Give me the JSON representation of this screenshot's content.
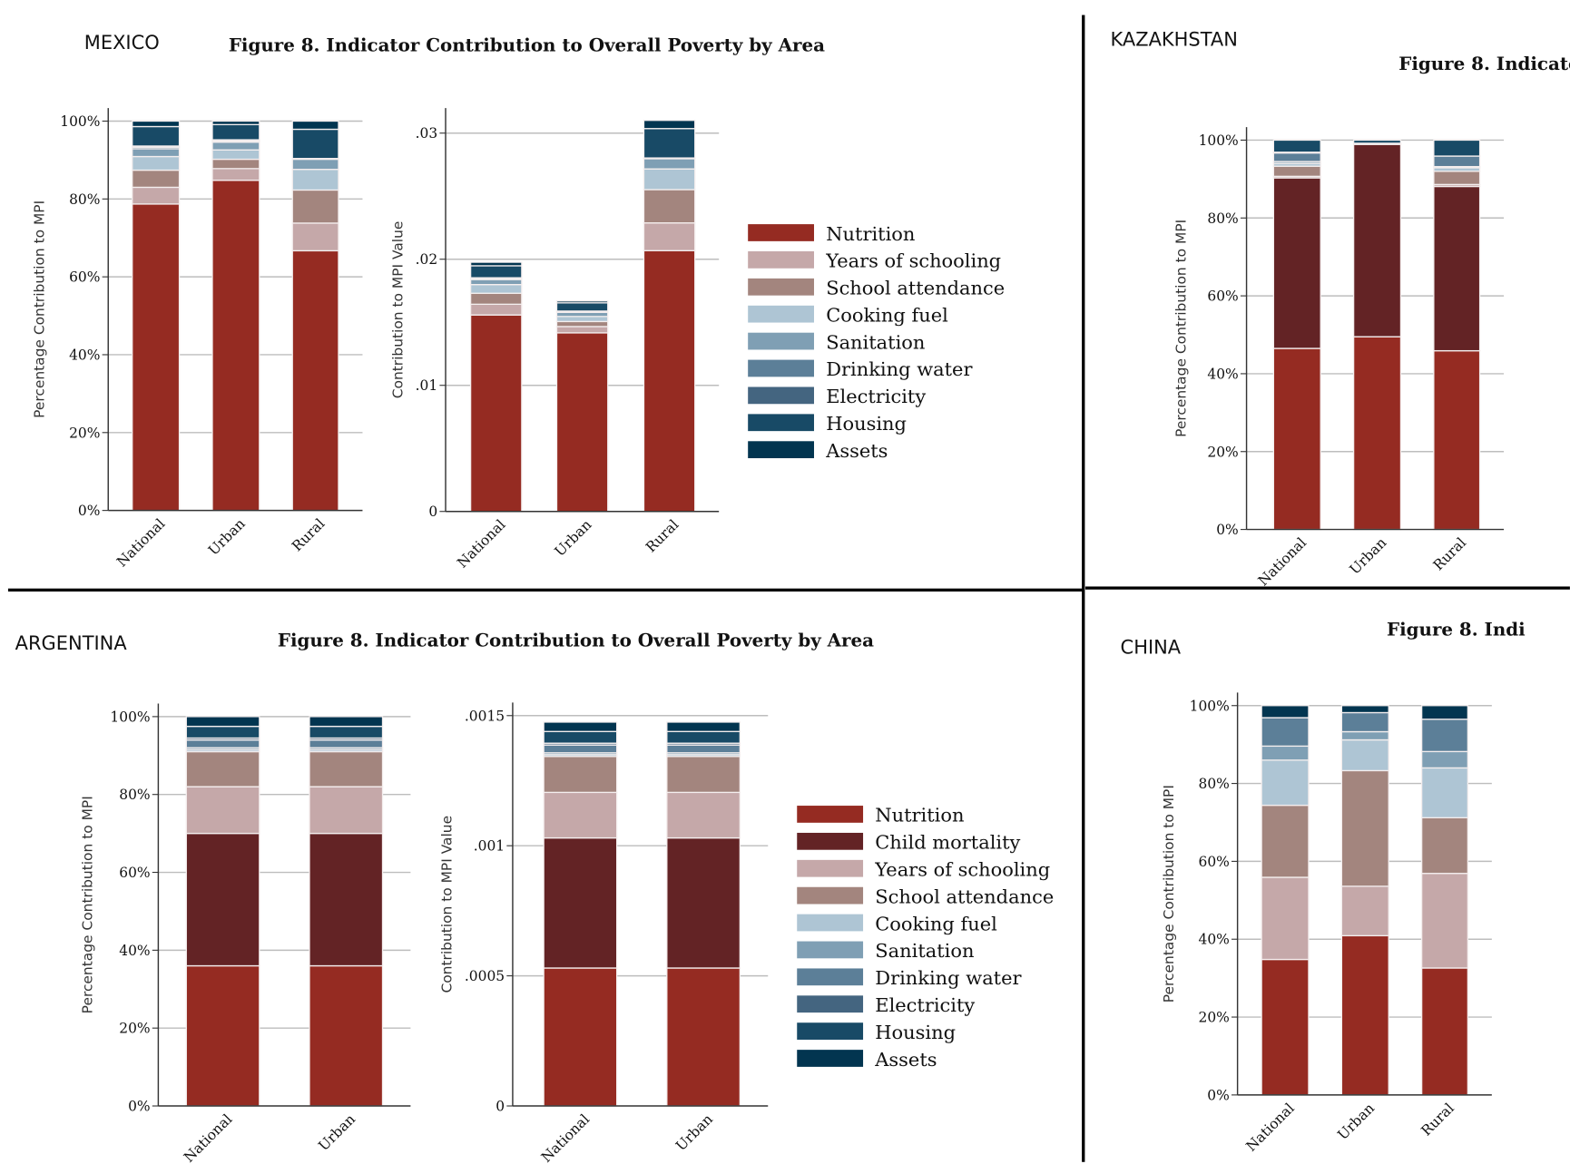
{
  "panels": {
    "mexico": {
      "country": "MEXICO",
      "title": "Figure 8. Indicator Contribution to Overall Poverty by Area"
    },
    "kazakhstan": {
      "country": "KAZAKHSTAN",
      "title": "Figure 8. Indicator"
    },
    "argentina": {
      "country": "ARGENTINA",
      "title": "Figure 8. Indicator Contribution to Overall Poverty by Area"
    },
    "china": {
      "country": "CHINA",
      "title": "Figure 8. Indi"
    }
  },
  "colors": {
    "Nutrition": "#952b22",
    "Child mortality": "#632325",
    "Years of schooling": "#c5a8a9",
    "School attendance": "#a3857e",
    "Cooking fuel": "#aec5d4",
    "Sanitation": "#7f9fb4",
    "Drinking water": "#5c7f98",
    "Electricity": "#446580",
    "Housing": "#184a66",
    "Assets": "#023550"
  },
  "legends": {
    "mexico": [
      "Nutrition",
      "Years of schooling",
      "School attendance",
      "Cooking fuel",
      "Sanitation",
      "Drinking water",
      "Electricity",
      "Housing",
      "Assets"
    ],
    "argentina": [
      "Nutrition",
      "Child mortality",
      "Years of schooling",
      "School attendance",
      "Cooking fuel",
      "Sanitation",
      "Drinking water",
      "Electricity",
      "Housing",
      "Assets"
    ]
  },
  "chart_data": [
    {
      "id": "mexico-pct",
      "type": "bar",
      "stacked": true,
      "ylabel": "Percentage Contribution to MPI",
      "ylim": [
        0,
        1
      ],
      "ticks": [
        0,
        0.2,
        0.4,
        0.6,
        0.8,
        1
      ],
      "tick_labels": [
        "0%",
        "20%",
        "40%",
        "60%",
        "80%",
        "100%"
      ],
      "categories": [
        "National",
        "Urban",
        "Rural"
      ],
      "series": [
        {
          "name": "Nutrition",
          "values": [
            0.787,
            0.848,
            0.667
          ]
        },
        {
          "name": "Years of schooling",
          "values": [
            0.043,
            0.03,
            0.071
          ]
        },
        {
          "name": "School attendance",
          "values": [
            0.044,
            0.024,
            0.085
          ]
        },
        {
          "name": "Cooking fuel",
          "values": [
            0.035,
            0.024,
            0.053
          ]
        },
        {
          "name": "Sanitation",
          "values": [
            0.02,
            0.02,
            0.026
          ]
        },
        {
          "name": "Drinking water",
          "values": [
            0.004,
            0.003,
            0.001
          ]
        },
        {
          "name": "Electricity",
          "values": [
            0.003,
            0.003,
            0.001
          ]
        },
        {
          "name": "Housing",
          "values": [
            0.05,
            0.039,
            0.075
          ]
        },
        {
          "name": "Assets",
          "values": [
            0.014,
            0.009,
            0.021
          ]
        }
      ]
    },
    {
      "id": "mexico-val",
      "type": "bar",
      "stacked": true,
      "ylabel": "Contribution to MPI Value",
      "ylim": [
        0,
        0.03
      ],
      "ticks": [
        0,
        0.01,
        0.02,
        0.03
      ],
      "tick_labels": [
        "0",
        ".01",
        ".02",
        ".03"
      ],
      "categories": [
        "National",
        "Urban",
        "Rural"
      ],
      "series": [
        {
          "name": "Nutrition",
          "values": [
            0.01558,
            0.01416,
            0.02068
          ]
        },
        {
          "name": "Years of schooling",
          "values": [
            0.00085,
            0.0005,
            0.0022
          ]
        },
        {
          "name": "School attendance",
          "values": [
            0.00087,
            0.0004,
            0.00264
          ]
        },
        {
          "name": "Cooking fuel",
          "values": [
            0.00069,
            0.0004,
            0.00164
          ]
        },
        {
          "name": "Sanitation",
          "values": [
            0.0004,
            0.00033,
            0.00081
          ]
        },
        {
          "name": "Drinking water",
          "values": [
            8e-05,
            5e-05,
            3e-05
          ]
        },
        {
          "name": "Electricity",
          "values": [
            6e-05,
            5e-05,
            3e-05
          ]
        },
        {
          "name": "Housing",
          "values": [
            0.00095,
            0.00065,
            0.00233
          ]
        },
        {
          "name": "Assets",
          "values": [
            0.00028,
            0.00015,
            0.00065
          ]
        }
      ]
    },
    {
      "id": "kazakhstan-pct",
      "type": "bar",
      "stacked": true,
      "ylabel": "Percentage Contribution to MPI",
      "ylim": [
        0,
        1
      ],
      "ticks": [
        0,
        0.2,
        0.4,
        0.6,
        0.8,
        1
      ],
      "tick_labels": [
        "0%",
        "20%",
        "40%",
        "60%",
        "80%",
        "100%"
      ],
      "categories": [
        "National",
        "Urban",
        "Rural"
      ],
      "series": [
        {
          "name": "Nutrition",
          "values": [
            0.465,
            0.495,
            0.459
          ]
        },
        {
          "name": "Child mortality",
          "values": [
            0.438,
            0.494,
            0.422
          ]
        },
        {
          "name": "Years of schooling",
          "values": [
            0.004,
            0.0,
            0.005
          ]
        },
        {
          "name": "School attendance",
          "values": [
            0.026,
            0.001,
            0.034
          ]
        },
        {
          "name": "Cooking fuel",
          "values": [
            0.007,
            0.001,
            0.009
          ]
        },
        {
          "name": "Sanitation",
          "values": [
            0.005,
            0.0,
            0.003
          ]
        },
        {
          "name": "Drinking water",
          "values": [
            0.022,
            0.001,
            0.027
          ]
        },
        {
          "name": "Electricity",
          "values": [
            0.002,
            0.0,
            0.0
          ]
        },
        {
          "name": "Housing",
          "values": [
            0.031,
            0.008,
            0.041
          ]
        },
        {
          "name": "Assets",
          "values": [
            0.0,
            0.0,
            0.0
          ]
        }
      ]
    },
    {
      "id": "argentina-pct",
      "type": "bar",
      "stacked": true,
      "ylabel": "Percentage Contribution to MPI",
      "ylim": [
        0,
        1
      ],
      "ticks": [
        0,
        0.2,
        0.4,
        0.6,
        0.8,
        1
      ],
      "tick_labels": [
        "0%",
        "20%",
        "40%",
        "60%",
        "80%",
        "100%"
      ],
      "categories": [
        "National",
        "Urban"
      ],
      "series": [
        {
          "name": "Nutrition",
          "values": [
            0.36,
            0.36
          ]
        },
        {
          "name": "Child mortality",
          "values": [
            0.34,
            0.34
          ]
        },
        {
          "name": "Years of schooling",
          "values": [
            0.12,
            0.12
          ]
        },
        {
          "name": "School attendance",
          "values": [
            0.09,
            0.09
          ]
        },
        {
          "name": "Cooking fuel",
          "values": [
            0.005,
            0.005
          ]
        },
        {
          "name": "Sanitation",
          "values": [
            0.005,
            0.005
          ]
        },
        {
          "name": "Drinking water",
          "values": [
            0.02,
            0.02
          ]
        },
        {
          "name": "Electricity",
          "values": [
            0.005,
            0.005
          ]
        },
        {
          "name": "Housing",
          "values": [
            0.03,
            0.03
          ]
        },
        {
          "name": "Assets",
          "values": [
            0.025,
            0.025
          ]
        }
      ]
    },
    {
      "id": "argentina-val",
      "type": "bar",
      "stacked": true,
      "ylabel": "Contribution to MPI Value",
      "ylim": [
        0,
        0.0015
      ],
      "ticks": [
        0,
        0.0005,
        0.001,
        0.0015
      ],
      "tick_labels": [
        "0",
        ".0005",
        ".001",
        ".0015"
      ],
      "categories": [
        "National",
        "Urban"
      ],
      "series": [
        {
          "name": "Nutrition",
          "values": [
            0.00053,
            0.00053
          ]
        },
        {
          "name": "Child mortality",
          "values": [
            0.0005,
            0.0005
          ]
        },
        {
          "name": "Years of schooling",
          "values": [
            0.000175,
            0.000175
          ]
        },
        {
          "name": "School attendance",
          "values": [
            0.000138,
            0.000138
          ]
        },
        {
          "name": "Cooking fuel",
          "values": [
            7e-06,
            7e-06
          ]
        },
        {
          "name": "Sanitation",
          "values": [
            7e-06,
            7e-06
          ]
        },
        {
          "name": "Drinking water",
          "values": [
            3e-05,
            3e-05
          ]
        },
        {
          "name": "Electricity",
          "values": [
            7e-06,
            7e-06
          ]
        },
        {
          "name": "Housing",
          "values": [
            4.5e-05,
            4.5e-05
          ]
        },
        {
          "name": "Assets",
          "values": [
            3.6e-05,
            3.6e-05
          ]
        }
      ]
    },
    {
      "id": "china-pct",
      "type": "bar",
      "stacked": true,
      "ylabel": "Percentage Contribution to MPI",
      "ylim": [
        0,
        1
      ],
      "ticks": [
        0,
        0.2,
        0.4,
        0.6,
        0.8,
        1
      ],
      "tick_labels": [
        "0%",
        "20%",
        "40%",
        "60%",
        "80%",
        "100%"
      ],
      "categories": [
        "National",
        "Urban",
        "Rural"
      ],
      "series": [
        {
          "name": "Nutrition",
          "values": [
            0.348,
            0.409,
            0.326
          ]
        },
        {
          "name": "Years of schooling",
          "values": [
            0.211,
            0.127,
            0.243
          ]
        },
        {
          "name": "School attendance",
          "values": [
            0.185,
            0.297,
            0.143
          ]
        },
        {
          "name": "Cooking fuel",
          "values": [
            0.116,
            0.079,
            0.128
          ]
        },
        {
          "name": "Sanitation",
          "values": [
            0.036,
            0.021,
            0.042
          ]
        },
        {
          "name": "Drinking water",
          "values": [
            0.073,
            0.049,
            0.083
          ]
        },
        {
          "name": "Assets",
          "values": [
            0.031,
            0.018,
            0.035
          ]
        }
      ]
    }
  ]
}
